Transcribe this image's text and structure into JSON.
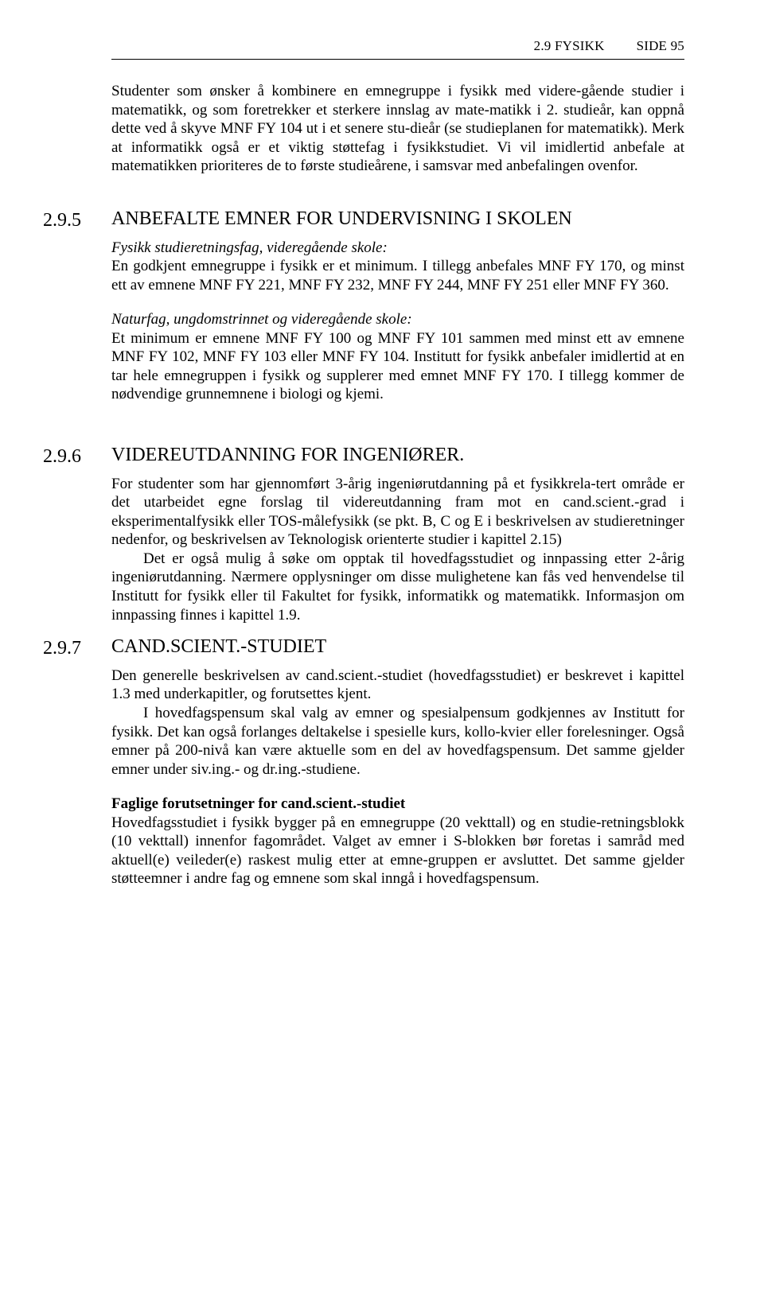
{
  "header": {
    "left": "2.9 FYSIKK",
    "right": "SIDE 95"
  },
  "intro": "Studenter som ønsker å kombinere en emnegruppe i fysikk med videre-gående studier i matematikk, og som foretrekker et sterkere innslag av mate-matikk i 2. studieår, kan oppnå dette ved å skyve MNF FY 104 ut i et senere stu-dieår (se studieplanen for matematikk). Merk at informatikk også er et viktig støttefag i fysikkstudiet. Vi vil imidlertid anbefale at matematikken prioriteres de to første studieårene, i samsvar med anbefalingen ovenfor.",
  "s295": {
    "num": "2.9.5",
    "title": "ANBEFALTE EMNER FOR UNDERVISNING I SKOLEN",
    "p1_italic": "Fysikk studieretningsfag, videregående skole:",
    "p1": "En godkjent emnegruppe i fysikk er et minimum. I tillegg anbefales MNF FY 170, og minst ett av emnene MNF FY 221, MNF FY 232, MNF FY 244, MNF FY 251 eller MNF FY 360.",
    "p2_italic": "Naturfag, ungdomstrinnet og videregående skole:",
    "p2": "Et minimum er emnene MNF FY 100 og MNF FY 101 sammen med minst ett av emnene MNF FY 102, MNF FY 103 eller MNF FY 104. Institutt for fysikk anbefaler imidlertid at en tar hele emnegruppen i fysikk og supplerer med emnet MNF FY 170. I tillegg kommer de nødvendige grunnemnene i biologi og kjemi."
  },
  "s296": {
    "num": "2.9.6",
    "title": "VIDEREUTDANNING FOR INGENIØRER.",
    "p1": "For studenter som har gjennomført 3-årig ingeniørutdanning på et fysikkrela-tert område er det utarbeidet egne forslag til videreutdanning fram mot en cand.scient.-grad i eksperimentalfysikk eller TOS-målefysikk (se pkt. B, C og E i beskrivelsen av studieretninger nedenfor, og beskrivelsen av Teknologisk orienterte studier i kapittel 2.15)",
    "p2": "Det er også mulig å søke om opptak til hovedfagsstudiet og innpassing etter 2-årig ingeniørutdanning. Nærmere opplysninger om disse mulighetene kan fås ved henvendelse til Institutt for fysikk  eller til Fakultet for fysikk, informatikk og matematikk. Informasjon om innpassing finnes i kapittel 1.9."
  },
  "s297": {
    "num": "2.9.7",
    "title": "CAND.SCIENT.-STUDIET",
    "p1": "Den generelle beskrivelsen av cand.scient.-studiet (hovedfagsstudiet) er beskrevet i kapittel 1.3 med underkapitler, og forutsettes kjent.",
    "p2": "I hovedfagspensum skal valg av emner og spesialpensum godkjennes av Institutt for fysikk. Det kan også forlanges deltakelse i spesielle kurs, kollo-kvier eller forelesninger. Også emner på 200-nivå kan være aktuelle som en del av hovedfagspensum. Det samme gjelder emner under siv.ing.- og dr.ing.-studiene.",
    "bold": "Faglige forutsetninger for cand.scient.-studiet",
    "p3": "Hovedfagsstudiet i fysikk bygger på en emnegruppe (20 vekttall) og en studie-retningsblokk (10 vekttall) innenfor fagområdet. Valget av emner i S-blokken bør foretas i samråd med aktuell(e) veileder(e) raskest mulig etter at emne-gruppen er avsluttet. Det samme gjelder støtteemner i andre fag og emnene som skal inngå i hovedfagspensum."
  }
}
